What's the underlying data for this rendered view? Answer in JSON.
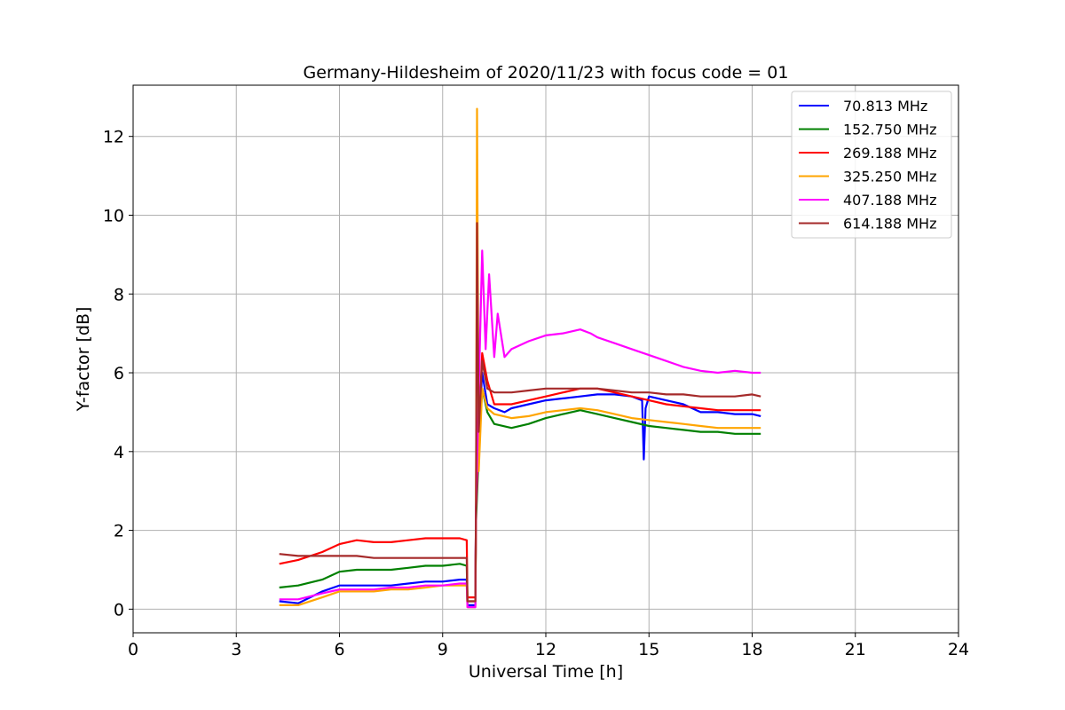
{
  "chart_data": {
    "type": "line",
    "title": "Germany-Hildesheim of 2020/11/23 with focus code = 01",
    "xlabel": "Universal Time [h]",
    "ylabel": "Y-factor [dB]",
    "xlim": [
      0,
      24
    ],
    "ylim": [
      -0.6,
      13.3
    ],
    "xticks": [
      0,
      3,
      6,
      9,
      12,
      15,
      18,
      21,
      24
    ],
    "xtick_labels": [
      "0",
      "3",
      "6",
      "9",
      "12",
      "15",
      "18",
      "21",
      "24"
    ],
    "yticks": [
      0,
      2,
      4,
      6,
      8,
      10,
      12
    ],
    "ytick_labels": [
      "0",
      "2",
      "4",
      "6",
      "8",
      "10",
      "12"
    ],
    "grid": true,
    "legend_position": "top-right",
    "series": [
      {
        "name": " 70.813 MHz",
        "color": "#0000ff",
        "x": [
          4.25,
          4.8,
          5.5,
          6.0,
          6.5,
          7.0,
          7.5,
          8.0,
          8.5,
          9.0,
          9.5,
          9.7,
          9.72,
          9.95,
          9.97,
          10.05,
          10.15,
          10.3,
          10.5,
          10.8,
          11.0,
          11.5,
          12.0,
          12.5,
          13.0,
          13.5,
          14.0,
          14.5,
          14.8,
          14.85,
          14.9,
          15.0,
          15.5,
          16.0,
          16.5,
          17.0,
          17.5,
          18.0,
          18.25
        ],
        "y": [
          0.2,
          0.15,
          0.45,
          0.6,
          0.6,
          0.6,
          0.6,
          0.65,
          0.7,
          0.7,
          0.75,
          0.75,
          0.1,
          0.1,
          2.5,
          4.5,
          6.0,
          5.2,
          5.1,
          5.0,
          5.1,
          5.2,
          5.3,
          5.35,
          5.4,
          5.45,
          5.45,
          5.4,
          5.3,
          3.8,
          5.1,
          5.4,
          5.3,
          5.2,
          5.0,
          5.0,
          4.95,
          4.95,
          4.9
        ]
      },
      {
        "name": "152.750 MHz",
        "color": "#008000",
        "x": [
          4.25,
          4.8,
          5.5,
          6.0,
          6.5,
          7.0,
          7.5,
          8.0,
          8.5,
          9.0,
          9.5,
          9.7,
          9.72,
          9.95,
          9.97,
          10.05,
          10.15,
          10.3,
          10.5,
          11.0,
          11.5,
          12.0,
          12.5,
          13.0,
          13.5,
          14.0,
          14.5,
          15.0,
          15.5,
          16.0,
          16.5,
          17.0,
          17.5,
          18.0,
          18.25
        ],
        "y": [
          0.55,
          0.6,
          0.75,
          0.95,
          1.0,
          1.0,
          1.0,
          1.05,
          1.1,
          1.1,
          1.15,
          1.1,
          0.2,
          0.2,
          2.2,
          4.0,
          5.6,
          5.0,
          4.7,
          4.6,
          4.7,
          4.85,
          4.95,
          5.05,
          4.95,
          4.85,
          4.75,
          4.65,
          4.6,
          4.55,
          4.5,
          4.5,
          4.45,
          4.45,
          4.45
        ]
      },
      {
        "name": "269.188 MHz",
        "color": "#ff0000",
        "x": [
          4.25,
          4.8,
          5.5,
          6.0,
          6.5,
          7.0,
          7.5,
          8.0,
          8.5,
          9.0,
          9.5,
          9.7,
          9.72,
          9.95,
          9.97,
          10.05,
          10.15,
          10.3,
          10.5,
          11.0,
          11.5,
          12.0,
          12.5,
          13.0,
          13.5,
          14.0,
          14.5,
          15.0,
          15.5,
          16.0,
          16.5,
          17.0,
          17.5,
          18.0,
          18.25
        ],
        "y": [
          1.15,
          1.25,
          1.45,
          1.65,
          1.75,
          1.7,
          1.7,
          1.75,
          1.8,
          1.8,
          1.8,
          1.75,
          0.3,
          0.3,
          2.5,
          4.5,
          6.5,
          5.8,
          5.2,
          5.2,
          5.3,
          5.4,
          5.5,
          5.6,
          5.6,
          5.5,
          5.4,
          5.3,
          5.2,
          5.15,
          5.1,
          5.05,
          5.05,
          5.05,
          5.05
        ]
      },
      {
        "name": "325.250 MHz",
        "color": "#ffa500",
        "x": [
          4.25,
          4.8,
          5.5,
          6.0,
          6.5,
          7.0,
          7.5,
          8.0,
          8.5,
          9.0,
          9.5,
          9.7,
          9.72,
          9.95,
          9.97,
          10.0,
          10.05,
          10.15,
          10.3,
          10.5,
          11.0,
          11.5,
          12.0,
          12.5,
          13.0,
          13.5,
          14.0,
          14.5,
          15.0,
          15.5,
          16.0,
          16.5,
          17.0,
          17.5,
          18.0,
          18.25
        ],
        "y": [
          0.1,
          0.1,
          0.3,
          0.45,
          0.45,
          0.45,
          0.5,
          0.5,
          0.55,
          0.6,
          0.6,
          0.6,
          0.05,
          0.05,
          2.0,
          12.7,
          3.5,
          5.6,
          5.1,
          4.95,
          4.85,
          4.9,
          5.0,
          5.05,
          5.1,
          5.05,
          4.95,
          4.85,
          4.8,
          4.75,
          4.7,
          4.65,
          4.6,
          4.6,
          4.6,
          4.6
        ]
      },
      {
        "name": "407.188 MHz",
        "color": "#ff00ff",
        "x": [
          4.25,
          4.8,
          5.5,
          6.0,
          6.5,
          7.0,
          7.5,
          8.0,
          8.5,
          9.0,
          9.5,
          9.7,
          9.72,
          9.95,
          9.97,
          10.05,
          10.15,
          10.25,
          10.35,
          10.5,
          10.6,
          10.8,
          11.0,
          11.5,
          12.0,
          12.5,
          13.0,
          13.3,
          13.5,
          14.0,
          14.5,
          15.0,
          15.5,
          16.0,
          16.5,
          17.0,
          17.5,
          18.0,
          18.25
        ],
        "y": [
          0.25,
          0.25,
          0.4,
          0.5,
          0.5,
          0.5,
          0.55,
          0.55,
          0.6,
          0.6,
          0.65,
          0.65,
          0.05,
          0.05,
          2.5,
          5.5,
          9.1,
          6.6,
          8.5,
          6.4,
          7.5,
          6.4,
          6.6,
          6.8,
          6.95,
          7.0,
          7.1,
          7.0,
          6.9,
          6.75,
          6.6,
          6.45,
          6.3,
          6.15,
          6.05,
          6.0,
          6.05,
          6.0,
          6.0
        ]
      },
      {
        "name": "614.188 MHz",
        "color": "#a52a2a",
        "x": [
          4.25,
          4.8,
          5.5,
          6.0,
          6.5,
          7.0,
          7.5,
          8.0,
          8.5,
          9.0,
          9.5,
          9.7,
          9.72,
          9.95,
          9.97,
          10.0,
          10.05,
          10.15,
          10.3,
          10.5,
          11.0,
          11.5,
          12.0,
          12.5,
          13.0,
          13.5,
          14.0,
          14.5,
          15.0,
          15.5,
          16.0,
          16.5,
          17.0,
          17.5,
          18.0,
          18.25
        ],
        "y": [
          1.4,
          1.35,
          1.35,
          1.35,
          1.35,
          1.3,
          1.3,
          1.3,
          1.3,
          1.3,
          1.3,
          1.3,
          0.2,
          0.2,
          2.5,
          9.8,
          4.5,
          6.3,
          5.6,
          5.5,
          5.5,
          5.55,
          5.6,
          5.6,
          5.6,
          5.6,
          5.55,
          5.5,
          5.5,
          5.45,
          5.45,
          5.4,
          5.4,
          5.4,
          5.45,
          5.4
        ]
      }
    ]
  }
}
